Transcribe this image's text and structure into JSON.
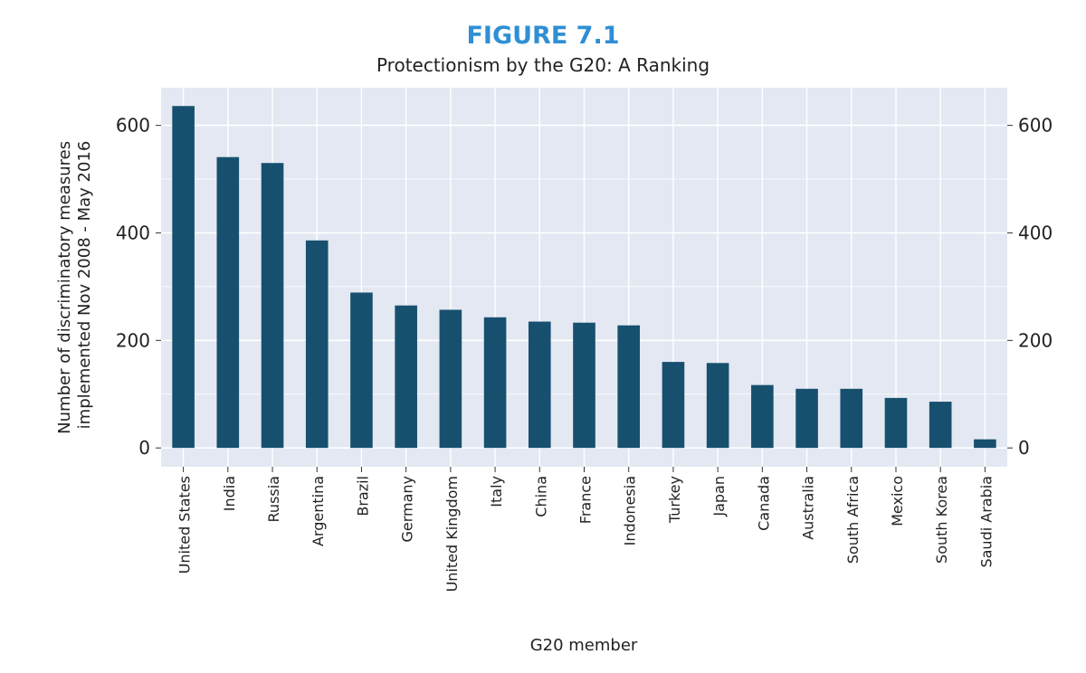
{
  "figure_label": "FIGURE 7.1",
  "figure_title": "Protectionism by the G20: A Ranking",
  "colors": {
    "bar": "#17506e",
    "plot_bg": "#e3e8f2",
    "grid": "#ffffff",
    "figure_label": "#2f8fd4"
  },
  "chart_data": {
    "type": "bar",
    "title": "Protectionism by the G20: A Ranking",
    "xlabel": "G20 member",
    "ylabel_lines": [
      "Number of discriminatory measures",
      "implemented Nov 2008 - May 2016"
    ],
    "categories": [
      "United States",
      "India",
      "Russia",
      "Argentina",
      "Brazil",
      "Germany",
      "United Kingdom",
      "Italy",
      "China",
      "France",
      "Indonesia",
      "Turkey",
      "Japan",
      "Canada",
      "Australia",
      "South Africa",
      "Mexico",
      "South Korea",
      "Saudi Arabia"
    ],
    "values": [
      636,
      541,
      530,
      386,
      289,
      265,
      257,
      243,
      235,
      233,
      228,
      160,
      158,
      117,
      110,
      110,
      93,
      86,
      16
    ],
    "yticks": [
      0,
      200,
      400,
      600
    ],
    "ylim": [
      -35,
      670
    ],
    "grid": true,
    "right_axis": true
  }
}
